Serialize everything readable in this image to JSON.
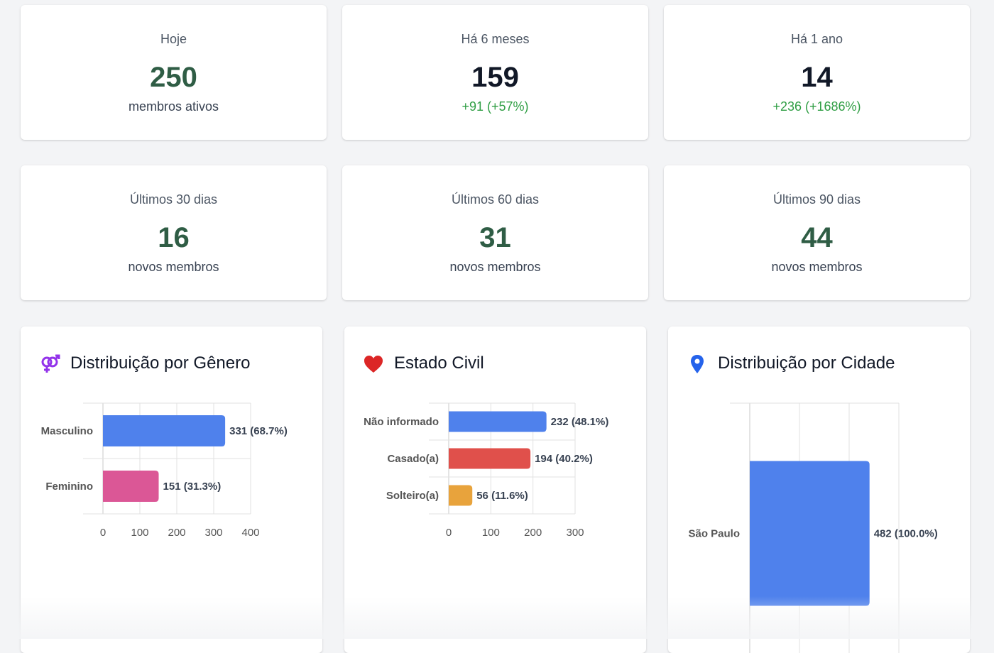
{
  "stats": [
    {
      "label": "Hoje",
      "value": "250",
      "sub": "membros ativos",
      "sub_positive": false,
      "value_style": "green"
    },
    {
      "label": "Há 6 meses",
      "value": "159",
      "sub": "+91 (+57%)",
      "sub_positive": true,
      "value_style": "dark"
    },
    {
      "label": "Há 1 ano",
      "value": "14",
      "sub": "+236 (+1686%)",
      "sub_positive": true,
      "value_style": "dark"
    },
    {
      "label": "Últimos 30 dias",
      "value": "16",
      "sub": "novos membros",
      "sub_positive": false,
      "value_style": "green"
    },
    {
      "label": "Últimos 60 dias",
      "value": "31",
      "sub": "novos membros",
      "sub_positive": false,
      "value_style": "green"
    },
    {
      "label": "Últimos 90 dias",
      "value": "44",
      "sub": "novos membros",
      "sub_positive": false,
      "value_style": "green"
    }
  ],
  "colors": {
    "positive": "#2f9e44",
    "value_green": "#2f5d45",
    "grid": "#e5e7eb"
  },
  "chart_data": [
    {
      "type": "bar",
      "orientation": "horizontal",
      "title": "Distribuição por Gênero",
      "icon": "gender-icon",
      "icon_color": "#9333ea",
      "categories": [
        "Masculino",
        "Feminino"
      ],
      "values": [
        331,
        151
      ],
      "labels": [
        "331 (68.7%)",
        "151 (31.3%)"
      ],
      "colors": [
        "#4f81ec",
        "#db5796"
      ],
      "xlim": [
        0,
        400
      ],
      "xticks": [
        0,
        100,
        200,
        300,
        400
      ],
      "grid": true
    },
    {
      "type": "bar",
      "orientation": "horizontal",
      "title": "Estado Civil",
      "icon": "heart-icon",
      "icon_color": "#dc2626",
      "categories": [
        "Não informado",
        "Casado(a)",
        "Solteiro(a)"
      ],
      "values": [
        232,
        194,
        56
      ],
      "labels": [
        "232 (48.1%)",
        "194 (40.2%)",
        "56 (11.6%)"
      ],
      "colors": [
        "#4f81ec",
        "#e0504b",
        "#e8a33c"
      ],
      "xlim": [
        0,
        300
      ],
      "xticks": [
        0,
        100,
        200,
        300
      ],
      "grid": true
    },
    {
      "type": "bar",
      "orientation": "horizontal",
      "title": "Distribuição por Cidade",
      "icon": "map-pin-icon",
      "icon_color": "#2563eb",
      "categories": [
        "São Paulo"
      ],
      "values": [
        482
      ],
      "labels": [
        "482 (100.0%)"
      ],
      "colors": [
        "#4f81ec"
      ],
      "xlim": [
        0,
        600
      ],
      "xticks": [],
      "grid": true
    }
  ]
}
